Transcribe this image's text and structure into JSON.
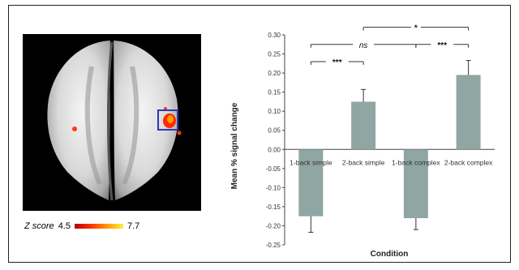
{
  "brain_figure": {
    "legend_label": "Z score",
    "legend_min": "4.5",
    "legend_max": "7.7",
    "colormap": [
      "#b40000",
      "#ff3000",
      "#ff9a00",
      "#ffee40"
    ],
    "roi_box_color": "#2a3ab8"
  },
  "chart_data": {
    "type": "bar",
    "categories": [
      "1-back simple",
      "2-back simple",
      "1-back complex",
      "2-back complex"
    ],
    "values": [
      -0.175,
      0.125,
      -0.18,
      0.195
    ],
    "errors": [
      0.042,
      0.032,
      0.03,
      0.038
    ],
    "xlabel": "Condition",
    "ylabel": "Mean % signal change",
    "ylim": [
      -0.25,
      0.3
    ],
    "yticks": [
      "0.30",
      "0.25",
      "0.20",
      "0.15",
      "0.10",
      "0.05",
      "0.00",
      "-0.05",
      "-0.10",
      "-0.15",
      "-0.20",
      "-0.25"
    ],
    "bar_color": "#8fa6a3",
    "grid": false,
    "significance": [
      {
        "from": 0,
        "to": 1,
        "label": "***",
        "y": 0.23
      },
      {
        "from": 0,
        "to": 2,
        "label": "ns",
        "y": 0.275
      },
      {
        "from": 1,
        "to": 3,
        "label": "*",
        "y": 0.32
      },
      {
        "from": 2,
        "to": 3,
        "label": "***",
        "y": 0.275
      }
    ]
  }
}
